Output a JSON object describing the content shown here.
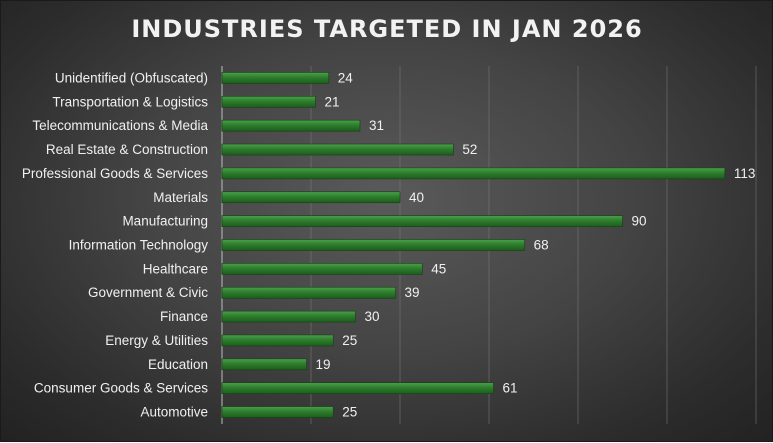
{
  "chart_data": {
    "type": "bar",
    "orientation": "horizontal",
    "title": "INDUSTRIES TARGETED IN JAN 2026",
    "categories": [
      "Unidentified (Obfuscated)",
      "Transportation & Logistics",
      "Telecommunications & Media",
      "Real Estate & Construction",
      "Professional Goods & Services",
      "Materials",
      "Manufacturing",
      "Information Technology",
      "Healthcare",
      "Government & Civic",
      "Finance",
      "Energy & Utilities",
      "Education",
      "Consumer Goods & Services",
      "Automotive"
    ],
    "series": [
      {
        "values": [
          24,
          21,
          31,
          52,
          113,
          40,
          90,
          68,
          45,
          39,
          30,
          25,
          19,
          61,
          25
        ]
      }
    ],
    "xlim": [
      0,
      120
    ],
    "grid": true,
    "bar_color": "#2e7d2e",
    "bar_color_dark": "#1b5e1b",
    "bar_color_light": "#4aa04a",
    "data_labels": true
  }
}
